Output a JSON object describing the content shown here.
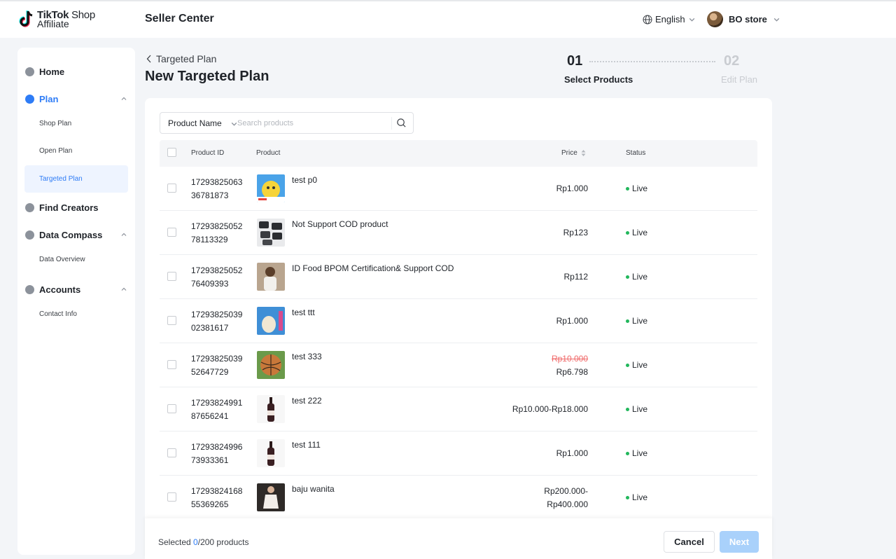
{
  "app": {
    "logo_line1": "TikTok",
    "logo_line1b": " Shop",
    "logo_line2": "Affiliate",
    "title": "Seller Center",
    "language": "English",
    "store_name": "BO store"
  },
  "sidebar": {
    "items": [
      {
        "label": "Home",
        "icon": "home-icon"
      },
      {
        "label": "Plan",
        "icon": "plan-icon"
      },
      {
        "label": "Shop Plan"
      },
      {
        "label": "Open Plan"
      },
      {
        "label": "Targeted Plan"
      },
      {
        "label": "Find Creators",
        "icon": "find-creators-icon"
      },
      {
        "label": "Data Compass",
        "icon": "data-compass-icon"
      },
      {
        "label": "Data Overview"
      },
      {
        "label": "Accounts",
        "icon": "accounts-icon"
      },
      {
        "label": "Contact Info"
      }
    ]
  },
  "header": {
    "breadcrumb": "Targeted Plan",
    "title": "New Targeted Plan",
    "steps": [
      {
        "num": "01",
        "label": "Select Products"
      },
      {
        "num": "02",
        "label": "Edit Plan"
      }
    ]
  },
  "search": {
    "field": "Product Name",
    "placeholder": "Search products"
  },
  "table": {
    "columns": [
      "Product ID",
      "Product",
      "Price",
      "Status"
    ],
    "rows": [
      {
        "id": "1729382506336781873",
        "name": "test p0",
        "price": "Rp1.000",
        "status": "Live"
      },
      {
        "id": "1729382505278113329",
        "name": "Not Support COD product",
        "price": "Rp123",
        "status": "Live"
      },
      {
        "id": "1729382505276409393",
        "name": "ID Food BPOM Certification& Support COD",
        "price": "Rp112",
        "status": "Live"
      },
      {
        "id": "1729382503902381617",
        "name": "test ttt",
        "price": "Rp1.000",
        "status": "Live"
      },
      {
        "id": "1729382503952647729",
        "name": "test 333",
        "price_original": "Rp10.000",
        "price": "Rp6.798",
        "status": "Live"
      },
      {
        "id": "1729382499187656241",
        "name": "test 222",
        "price": "Rp10.000-Rp18.000",
        "status": "Live"
      },
      {
        "id": "1729382499673933361",
        "name": "test 111",
        "price": "Rp1.000",
        "status": "Live"
      },
      {
        "id": "1729382416855369265",
        "name": "baju wanita",
        "price_line1": "Rp200.000-",
        "price_line2": "Rp400.000",
        "status": "Live"
      }
    ]
  },
  "footer": {
    "selected_prefix": "Selected ",
    "selected_count": "0",
    "selected_suffix": "/200 products",
    "cancel_label": "Cancel",
    "next_label": "Next"
  },
  "colors": {
    "accent": "#2e7cf6",
    "live": "#22b75c",
    "strike": "#f06a6a",
    "next_disabled": "#a9d1fb"
  }
}
